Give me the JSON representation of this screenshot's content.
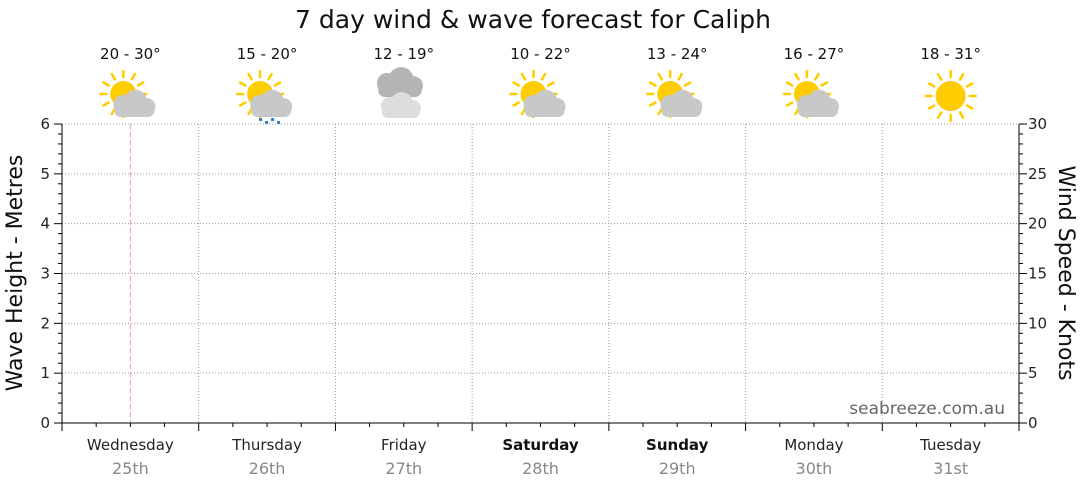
{
  "chart_data": {
    "type": "line",
    "title": "7 day wind & wave forecast for Caliph",
    "ylabel_left": "Wave Height - Metres",
    "ylabel_right": "Wind Speed - Knots",
    "ylim_left": [
      0,
      6
    ],
    "ylim_right": [
      0,
      30
    ],
    "yticks_left": [
      "0",
      "1",
      "2",
      "3",
      "4",
      "5",
      "6"
    ],
    "yticks_right": [
      "0",
      "5",
      "10",
      "15",
      "20",
      "25",
      "30"
    ],
    "grid": true,
    "current_time_marker_day": 0,
    "days": [
      {
        "name": "Wednesday",
        "date": "25th",
        "bold": false,
        "temp": "20 - 30°",
        "weather": "partly-cloudy"
      },
      {
        "name": "Thursday",
        "date": "26th",
        "bold": false,
        "temp": "15 - 20°",
        "weather": "partly-cloudy-showers"
      },
      {
        "name": "Friday",
        "date": "27th",
        "bold": false,
        "temp": "12 - 19°",
        "weather": "cloudy"
      },
      {
        "name": "Saturday",
        "date": "28th",
        "bold": true,
        "temp": "10 - 22°",
        "weather": "partly-cloudy"
      },
      {
        "name": "Sunday",
        "date": "29th",
        "bold": true,
        "temp": "13 - 24°",
        "weather": "partly-cloudy"
      },
      {
        "name": "Monday",
        "date": "30th",
        "bold": false,
        "temp": "16 - 27°",
        "weather": "partly-cloudy"
      },
      {
        "name": "Tuesday",
        "date": "31st",
        "bold": false,
        "temp": "18 - 31°",
        "weather": "sunny"
      }
    ],
    "series": []
  },
  "watermark": "seabreeze.com.au",
  "colors": {
    "sun": "#ffcc00",
    "sun_rays": "#ffcc00",
    "cloud": "#c8c8c8",
    "cloud_dark": "#b4b4b4",
    "rain": "#2f7fd6",
    "grid": "#9a9a9a",
    "marker": "#e8a58a"
  }
}
